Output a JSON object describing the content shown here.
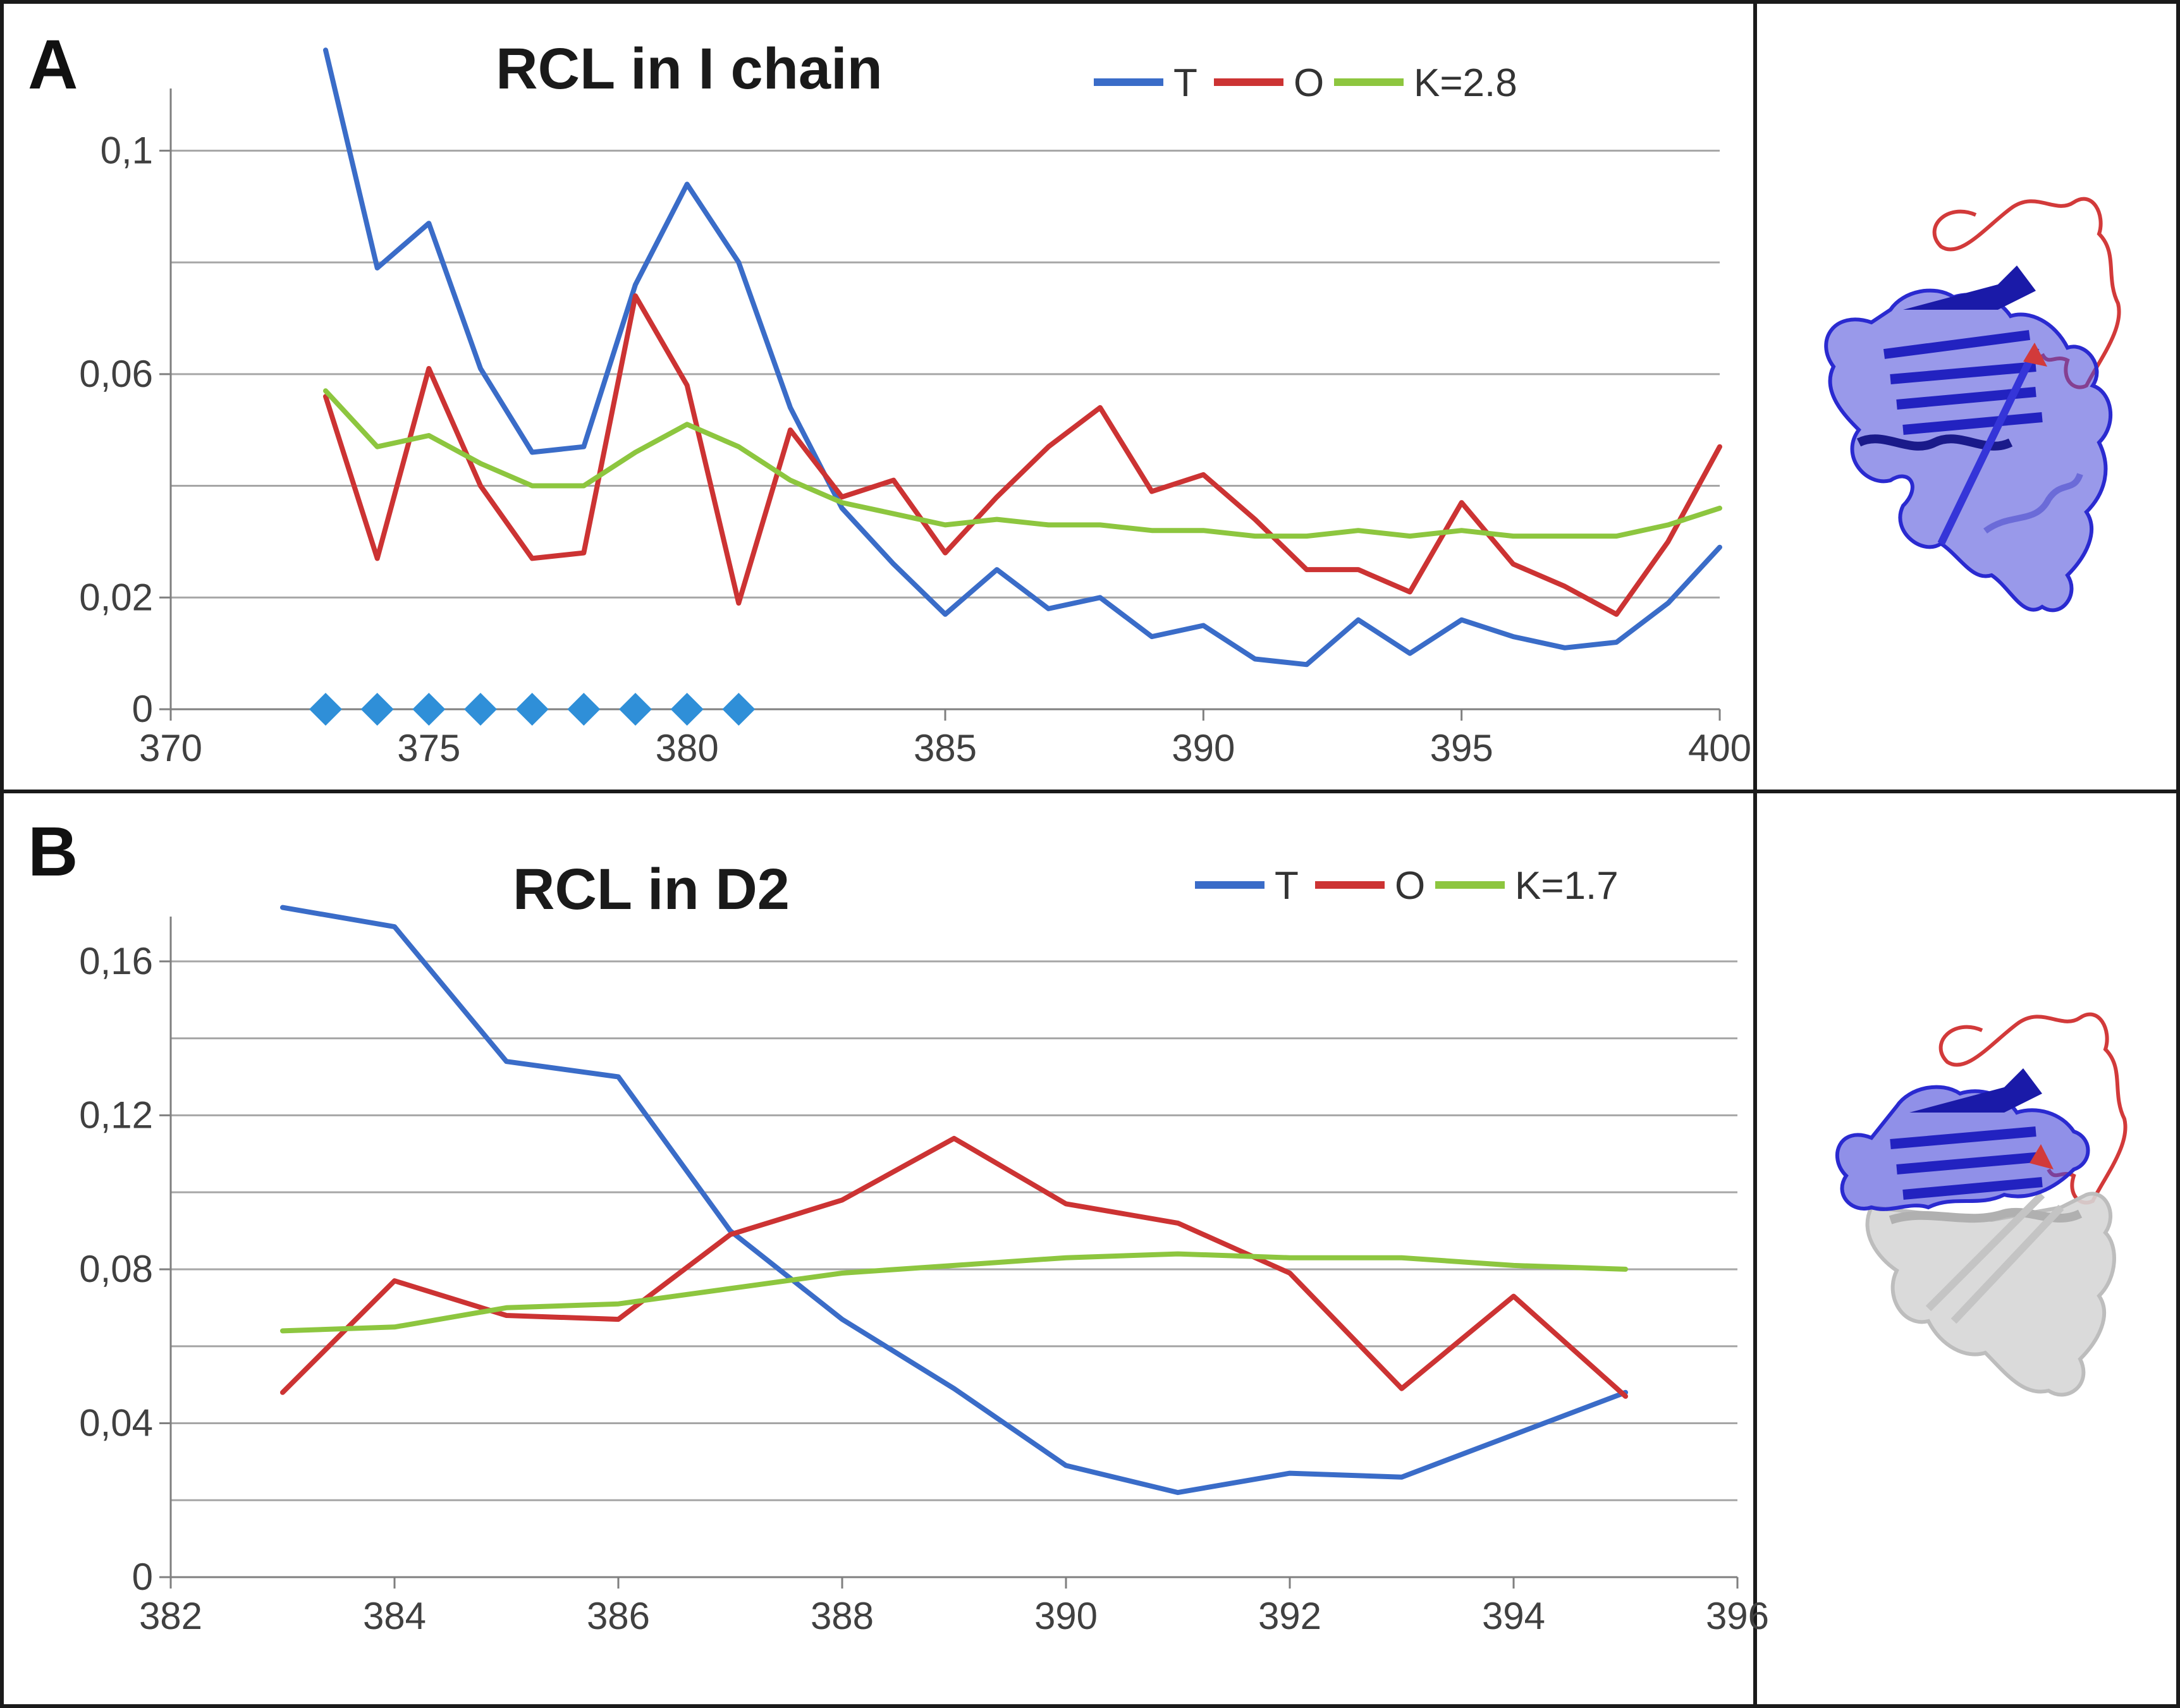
{
  "chart_data": [
    {
      "type": "line",
      "panel": "A",
      "title": "RCL in I chain",
      "xlabel": "",
      "ylabel": "",
      "xlim": [
        370,
        400
      ],
      "ylim": [
        0,
        0.11
      ],
      "xticks": [
        "370",
        "375",
        "380",
        "385",
        "390",
        "395",
        "400"
      ],
      "yticks": [
        {
          "value": 0,
          "label": "0"
        },
        {
          "value": 0.02,
          "label": "0,02"
        },
        {
          "value": 0.06,
          "label": "0,06"
        },
        {
          "value": 0.1,
          "label": "0,1"
        }
      ],
      "grid_values": [
        0.02,
        0.04,
        0.06,
        0.08,
        0.1
      ],
      "legend_position": "top-right",
      "x": [
        373,
        374,
        375,
        376,
        377,
        378,
        379,
        380,
        381,
        382,
        383,
        384,
        385,
        386,
        387,
        388,
        389,
        390,
        391,
        392,
        393,
        394,
        395,
        396,
        397,
        398,
        399,
        400
      ],
      "series": [
        {
          "name": "T",
          "color": "#3a6cc8",
          "values": [
            0.118,
            0.079,
            0.087,
            0.061,
            0.046,
            0.047,
            0.076,
            0.094,
            0.08,
            0.054,
            0.036,
            0.026,
            0.017,
            0.025,
            0.018,
            0.02,
            0.013,
            0.015,
            0.009,
            0.008,
            0.016,
            0.01,
            0.016,
            0.013,
            0.011,
            0.012,
            0.019,
            0.029
          ]
        },
        {
          "name": "O",
          "color": "#cc3333",
          "values": [
            0.056,
            0.027,
            0.061,
            0.04,
            0.027,
            0.028,
            0.074,
            0.058,
            0.019,
            0.05,
            0.038,
            0.041,
            0.028,
            0.038,
            0.047,
            0.054,
            0.039,
            0.042,
            0.034,
            0.025,
            0.025,
            0.021,
            0.037,
            0.026,
            0.022,
            0.017,
            0.03,
            0.047
          ]
        },
        {
          "name": "K=2.8",
          "color": "#8dc63f",
          "values": [
            0.057,
            0.047,
            0.049,
            0.044,
            0.04,
            0.04,
            0.046,
            0.051,
            0.047,
            0.041,
            0.037,
            0.035,
            0.033,
            0.034,
            0.033,
            0.033,
            0.032,
            0.032,
            0.031,
            0.031,
            0.032,
            0.031,
            0.032,
            0.031,
            0.031,
            0.031,
            0.033,
            0.036
          ]
        }
      ],
      "markers": {
        "shape": "diamond",
        "color": "#2f8fd8",
        "y": 0,
        "x": [
          373,
          374,
          375,
          376,
          377,
          378,
          379,
          380,
          381
        ]
      }
    },
    {
      "type": "line",
      "panel": "B",
      "title": "RCL in D2",
      "xlabel": "",
      "ylabel": "",
      "xlim": [
        382,
        396
      ],
      "ylim": [
        0,
        0.17
      ],
      "xticks": [
        "382",
        "384",
        "386",
        "388",
        "390",
        "392",
        "394",
        "396"
      ],
      "yticks": [
        {
          "value": 0,
          "label": "0"
        },
        {
          "value": 0.04,
          "label": "0,04"
        },
        {
          "value": 0.08,
          "label": "0,08"
        },
        {
          "value": 0.12,
          "label": "0,12"
        },
        {
          "value": 0.16,
          "label": "0,16"
        }
      ],
      "grid_values": [
        0.02,
        0.04,
        0.06,
        0.08,
        0.1,
        0.12,
        0.14,
        0.16
      ],
      "legend_position": "top-right",
      "x": [
        383,
        384,
        385,
        386,
        387,
        388,
        389,
        390,
        391,
        392,
        393,
        394,
        395
      ],
      "series": [
        {
          "name": "T",
          "color": "#3a6cc8",
          "values": [
            0.174,
            0.169,
            0.134,
            0.13,
            0.09,
            0.067,
            0.049,
            0.029,
            0.022,
            0.027,
            0.026,
            0.037,
            0.048
          ]
        },
        {
          "name": "O",
          "color": "#cc3333",
          "values": [
            0.048,
            0.077,
            0.068,
            0.067,
            0.089,
            0.098,
            0.114,
            0.097,
            0.092,
            0.079,
            0.049,
            0.073,
            0.047
          ]
        },
        {
          "name": "K=1.7",
          "color": "#8dc63f",
          "values": [
            0.064,
            0.065,
            0.07,
            0.071,
            0.075,
            0.079,
            0.081,
            0.083,
            0.084,
            0.083,
            0.083,
            0.081,
            0.08
          ]
        }
      ]
    }
  ],
  "structures": [
    {
      "panel": "A",
      "name": "protein-structure-rcl-i-chain",
      "colors": {
        "core": "#2a2ad0",
        "loop": "#d23a3a"
      }
    },
    {
      "panel": "B",
      "name": "protein-structure-rcl-d2",
      "colors": {
        "core": "#2a2ad0",
        "loop": "#d23a3a",
        "rest": "#c8c8c8"
      }
    }
  ]
}
